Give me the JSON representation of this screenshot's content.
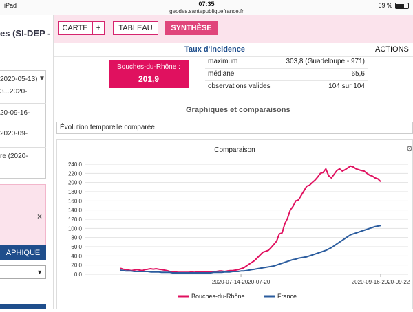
{
  "status_bar": {
    "device": "iPad",
    "time": "07:35",
    "url": "geodes.santepubliquefrance.fr",
    "battery": "69 %",
    "battery_level": 0.69
  },
  "left_panel": {
    "title": "es (SI-DEP -",
    "dates": [
      "2020-05-13)",
      "3...2020-",
      "20-09-16-",
      "2020-09-",
      "re (2020-"
    ],
    "graphique_label": "APHIQUE",
    "close_label": "×"
  },
  "toolbar": {
    "carte": "CARTE",
    "plus": "+",
    "tableau": "TABLEAU",
    "synthese": "SYNTHÈSE"
  },
  "main": {
    "taux_title": "Taux d'incidence",
    "actions": "ACTIONS",
    "dept_name": "Bouches-du-Rhône :",
    "dept_value": "201,9",
    "stats": [
      {
        "label": "maximum",
        "value": "303,8 (Guadeloupe - 971)"
      },
      {
        "label": "médiane",
        "value": "65,6"
      },
      {
        "label": "observations valides",
        "value": "104 sur 104"
      }
    ],
    "graph_section_title": "Graphiques et comparaisons",
    "evolution_select": "Évolution temporelle comparée"
  },
  "chart_data": {
    "type": "line",
    "title": "Comparaison",
    "y_ticks": [
      "240,0",
      "220,0",
      "200,0",
      "180,0",
      "160,0",
      "140,0",
      "120,0",
      "100,0",
      "80,0",
      "60,0",
      "40,0",
      "20,0",
      "0,0"
    ],
    "ylim": [
      0,
      240
    ],
    "x_tick_labels": [
      {
        "label": "2020-07-14-2020-07-20",
        "index": 44
      },
      {
        "label": "2020-09-16-2020-09-22",
        "index": 95
      }
    ],
    "series": [
      {
        "name": "Bouches-du-Rhône",
        "color": "#e0115f",
        "values": [
          13,
          11,
          10,
          9,
          8,
          9,
          10,
          9,
          8,
          10,
          11,
          12,
          11,
          12,
          11,
          10,
          9,
          8,
          6,
          5,
          5,
          4,
          4,
          4,
          4,
          4,
          5,
          4,
          5,
          5,
          5,
          6,
          5,
          6,
          6,
          6,
          7,
          7,
          6,
          7,
          8,
          8,
          9,
          10,
          12,
          14,
          18,
          22,
          26,
          30,
          36,
          42,
          48,
          50,
          52,
          58,
          65,
          72,
          88,
          90,
          110,
          122,
          140,
          148,
          160,
          162,
          172,
          182,
          192,
          194,
          200,
          205,
          212,
          220,
          222,
          230,
          215,
          210,
          218,
          226,
          230,
          225,
          228,
          232,
          236,
          234,
          230,
          228,
          226,
          225,
          220,
          216,
          214,
          210,
          208,
          202
        ]
      },
      {
        "name": "France",
        "color": "#2b5c9e",
        "values": [
          9,
          8,
          7,
          7,
          7,
          6,
          6,
          6,
          6,
          6,
          6,
          5,
          5,
          5,
          5,
          4,
          4,
          4,
          4,
          3,
          3,
          3,
          3,
          3,
          3,
          3,
          3,
          3,
          3,
          3,
          3,
          3,
          3,
          3,
          4,
          4,
          4,
          4,
          5,
          5,
          5,
          6,
          6,
          6,
          7,
          7,
          8,
          9,
          10,
          11,
          12,
          13,
          14,
          15,
          16,
          17,
          18,
          20,
          22,
          24,
          26,
          28,
          30,
          32,
          33,
          35,
          36,
          37,
          38,
          40,
          42,
          44,
          46,
          48,
          50,
          52,
          55,
          58,
          62,
          66,
          70,
          74,
          78,
          82,
          86,
          88,
          90,
          92,
          94,
          96,
          98,
          100,
          102,
          104,
          105,
          106
        ]
      }
    ]
  }
}
